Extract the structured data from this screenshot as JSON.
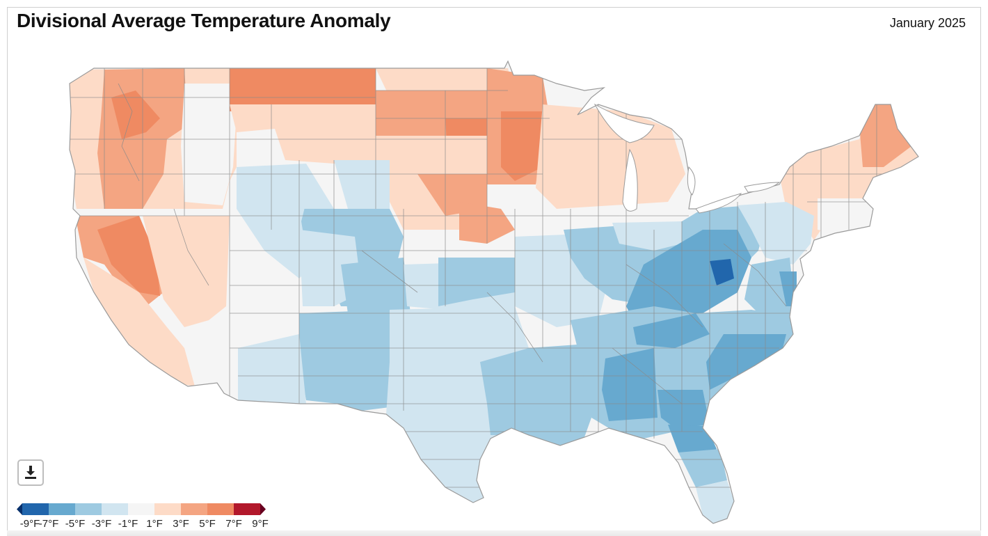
{
  "header": {
    "title": "Divisional Average Temperature Anomaly",
    "period": "January 2025"
  },
  "toolbar": {
    "download_icon": "download-icon"
  },
  "legend": {
    "unit": "°F",
    "labels": [
      "-9°F",
      "-7°F",
      "-5°F",
      "-3°F",
      "-1°F",
      "1°F",
      "3°F",
      "5°F",
      "7°F",
      "9°F"
    ],
    "colors": [
      "#2166ac",
      "#67a9cf",
      "#9ecae1",
      "#d1e5f0",
      "#f5f5f5",
      "#fddbc7",
      "#f4a582",
      "#ef8a62",
      "#b2182b"
    ],
    "underflow_color": "#08306b",
    "overflow_color": "#67001f"
  },
  "map": {
    "subject": "Contiguous United States climate divisions",
    "palette": {
      "cold_strong": "#2166ac",
      "cold_mid": "#67a9cf",
      "cold_light": "#9ecae1",
      "cold_faint": "#d1e5f0",
      "neutral": "#f5f5f5",
      "warm_faint": "#fddbc7",
      "warm_light": "#f4a582",
      "warm_mid": "#ef8a62",
      "outline": "#8a8a8a",
      "coast": "#9a9a9a"
    }
  }
}
